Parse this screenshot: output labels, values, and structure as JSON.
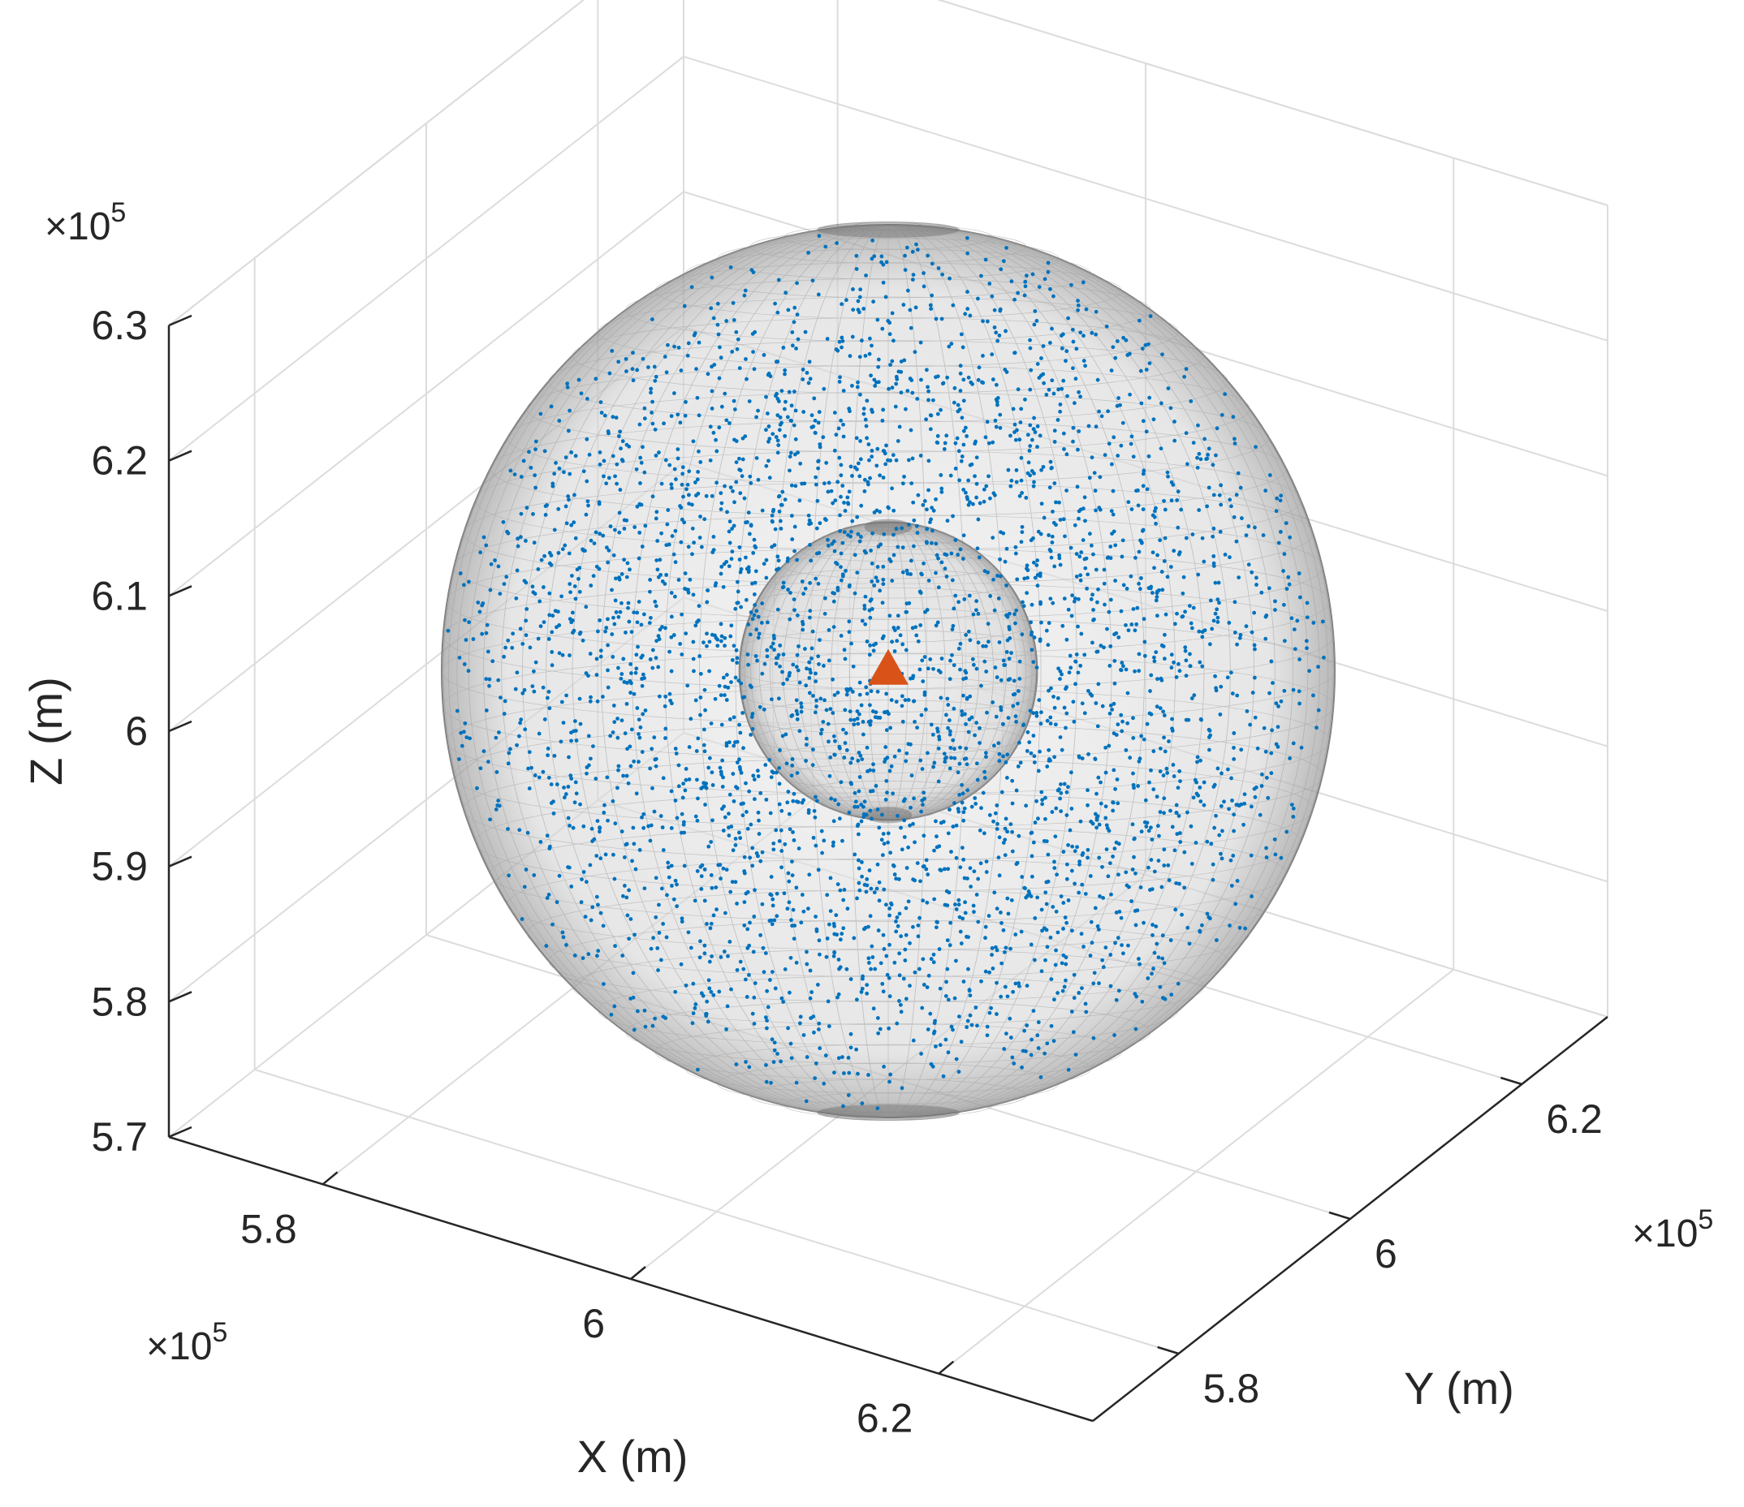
{
  "chart_data": {
    "type": "scatter3d",
    "view": "3d-box",
    "grid": true,
    "axes": {
      "x": {
        "label": "X (m)",
        "exponent": "×10",
        "exponent_power": "5",
        "ticks": [
          5.8,
          6,
          6.2
        ],
        "tick_labels": [
          "5.8",
          "6",
          "6.2"
        ],
        "range": [
          5.7,
          6.3
        ]
      },
      "y": {
        "label": "Y (m)",
        "exponent": "×10",
        "exponent_power": "5",
        "ticks": [
          5.8,
          6,
          6.2
        ],
        "tick_labels": [
          "5.8",
          "6",
          "6.2"
        ],
        "range": [
          5.7,
          6.3
        ]
      },
      "z": {
        "label": "Z (m)",
        "exponent": "×10",
        "exponent_power": "5",
        "ticks": [
          5.7,
          5.8,
          5.9,
          6,
          6.1,
          6.2,
          6.3
        ],
        "tick_labels": [
          "5.7",
          "5.8",
          "5.9",
          "6",
          "6.1",
          "6.2",
          "6.3"
        ],
        "range": [
          5.7,
          6.3
        ]
      }
    },
    "spheres": [
      {
        "center": [
          6.0,
          6.0,
          6.0
        ],
        "radius": 0.33,
        "style": "translucent gray wireframe"
      },
      {
        "center": [
          6.0,
          6.0,
          6.0
        ],
        "radius": 0.11,
        "style": "translucent gray wireframe"
      }
    ],
    "point_cloud": {
      "marker": "dot",
      "color": "#0072BD",
      "distribution": "uniform random inside outer sphere"
    },
    "marker": {
      "position": [
        6.0,
        6.0,
        6.0
      ],
      "shape": "triangle",
      "color": "#D95319"
    },
    "colors": {
      "axis": "#262626",
      "grid": "#dcdcdc",
      "points": "#0072BD",
      "marker": "#D95319"
    }
  }
}
